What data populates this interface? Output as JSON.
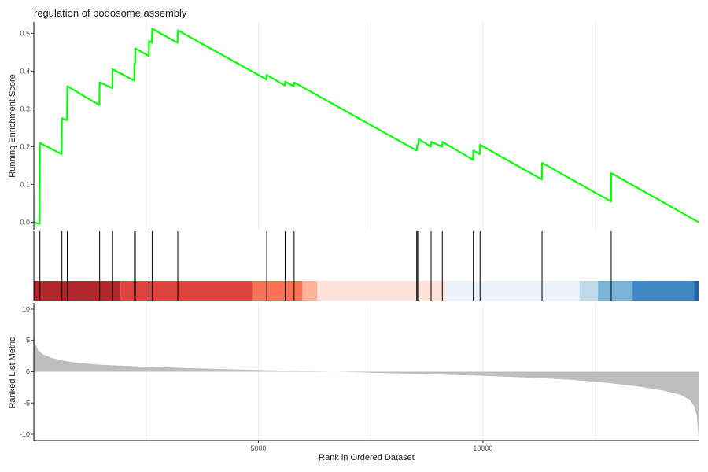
{
  "chart_data": {
    "type": "line",
    "title": "regulation of podosome assembly",
    "xlabel": "Rank in Ordered Dataset",
    "xlim": [
      0,
      14800
    ],
    "x_ticks": [
      5000,
      10000
    ],
    "grid": "vertical",
    "panels": {
      "running_es": {
        "ylabel": "Running Enrichment Score",
        "ylim": [
          -0.02,
          0.53
        ],
        "y_ticks": [
          0.0,
          0.1,
          0.2,
          0.3,
          0.4,
          0.5
        ],
        "line_color": "#00ff00",
        "series": [
          {
            "points": [
              [
                0,
                0.0
              ],
              [
                130,
                -0.005
              ],
              [
                135,
                0.21
              ],
              [
                620,
                0.18
              ],
              [
                625,
                0.275
              ],
              [
                740,
                0.27
              ],
              [
                745,
                0.36
              ],
              [
                1460,
                0.31
              ],
              [
                1465,
                0.37
              ],
              [
                1750,
                0.355
              ],
              [
                1755,
                0.405
              ],
              [
                2235,
                0.375
              ],
              [
                2240,
                0.42
              ],
              [
                2255,
                0.42
              ],
              [
                2260,
                0.46
              ],
              [
                2560,
                0.44
              ],
              [
                2565,
                0.48
              ],
              [
                2630,
                0.475
              ],
              [
                2635,
                0.512
              ],
              [
                3200,
                0.475
              ],
              [
                3205,
                0.508
              ],
              [
                5180,
                0.378
              ],
              [
                5185,
                0.39
              ],
              [
                5590,
                0.362
              ],
              [
                5595,
                0.372
              ],
              [
                5790,
                0.36
              ],
              [
                5795,
                0.37
              ],
              [
                8520,
                0.19
              ],
              [
                8525,
                0.19
              ],
              [
                8540,
                0.205
              ],
              [
                8560,
                0.205
              ],
              [
                8570,
                0.22
              ],
              [
                8840,
                0.2
              ],
              [
                8845,
                0.213
              ],
              [
                9090,
                0.2
              ],
              [
                9095,
                0.213
              ],
              [
                9780,
                0.165
              ],
              [
                9785,
                0.19
              ],
              [
                9930,
                0.18
              ],
              [
                9935,
                0.205
              ],
              [
                11310,
                0.113
              ],
              [
                11315,
                0.157
              ],
              [
                12850,
                0.055
              ],
              [
                12855,
                0.13
              ],
              [
                14800,
                0.0
              ]
            ]
          }
        ]
      },
      "gene_hits": {
        "x": [
          135,
          625,
          745,
          1465,
          1755,
          2240,
          2260,
          2565,
          2635,
          3205,
          5185,
          5595,
          5795,
          8525,
          8545,
          8570,
          8845,
          9095,
          9785,
          9935,
          11315,
          12855
        ]
      },
      "color_bar": {
        "segments": [
          {
            "x0": 0,
            "x1": 1930,
            "color": "#b2262d"
          },
          {
            "x0": 1930,
            "x1": 4860,
            "color": "#e0423d"
          },
          {
            "x0": 4860,
            "x1": 5980,
            "color": "#fa7358"
          },
          {
            "x0": 5980,
            "x1": 6310,
            "color": "#fcb39a"
          },
          {
            "x0": 6310,
            "x1": 9160,
            "color": "#fde2d7"
          },
          {
            "x0": 9160,
            "x1": 12150,
            "color": "#ecf2fb"
          },
          {
            "x0": 12150,
            "x1": 12560,
            "color": "#c2dbe9"
          },
          {
            "x0": 12560,
            "x1": 13330,
            "color": "#79b3d8"
          },
          {
            "x0": 13330,
            "x1": 14700,
            "color": "#3f88c4"
          },
          {
            "x0": 14700,
            "x1": 14800,
            "color": "#1f64a8"
          }
        ]
      },
      "ranked_metric": {
        "ylabel": "Ranked List Metric",
        "ylim": [
          -11,
          11
        ],
        "y_ticks": [
          10,
          5,
          0,
          -5,
          -10
        ],
        "fill_color": "#bebebe",
        "curve": [
          [
            0,
            8.0
          ],
          [
            10,
            5.5
          ],
          [
            40,
            4.3
          ],
          [
            100,
            3.4
          ],
          [
            200,
            2.8
          ],
          [
            400,
            2.2
          ],
          [
            700,
            1.7
          ],
          [
            1000,
            1.4
          ],
          [
            1500,
            1.1
          ],
          [
            2500,
            0.8
          ],
          [
            4000,
            0.45
          ],
          [
            6000,
            0.1
          ],
          [
            7000,
            -0.05
          ],
          [
            8000,
            -0.25
          ],
          [
            9000,
            -0.45
          ],
          [
            10000,
            -0.65
          ],
          [
            11000,
            -0.95
          ],
          [
            12000,
            -1.3
          ],
          [
            12800,
            -1.8
          ],
          [
            13500,
            -2.4
          ],
          [
            14000,
            -3.0
          ],
          [
            14400,
            -3.7
          ],
          [
            14600,
            -4.5
          ],
          [
            14700,
            -5.5
          ],
          [
            14760,
            -7.0
          ],
          [
            14790,
            -9.5
          ],
          [
            14800,
            -10.8
          ]
        ]
      }
    }
  }
}
